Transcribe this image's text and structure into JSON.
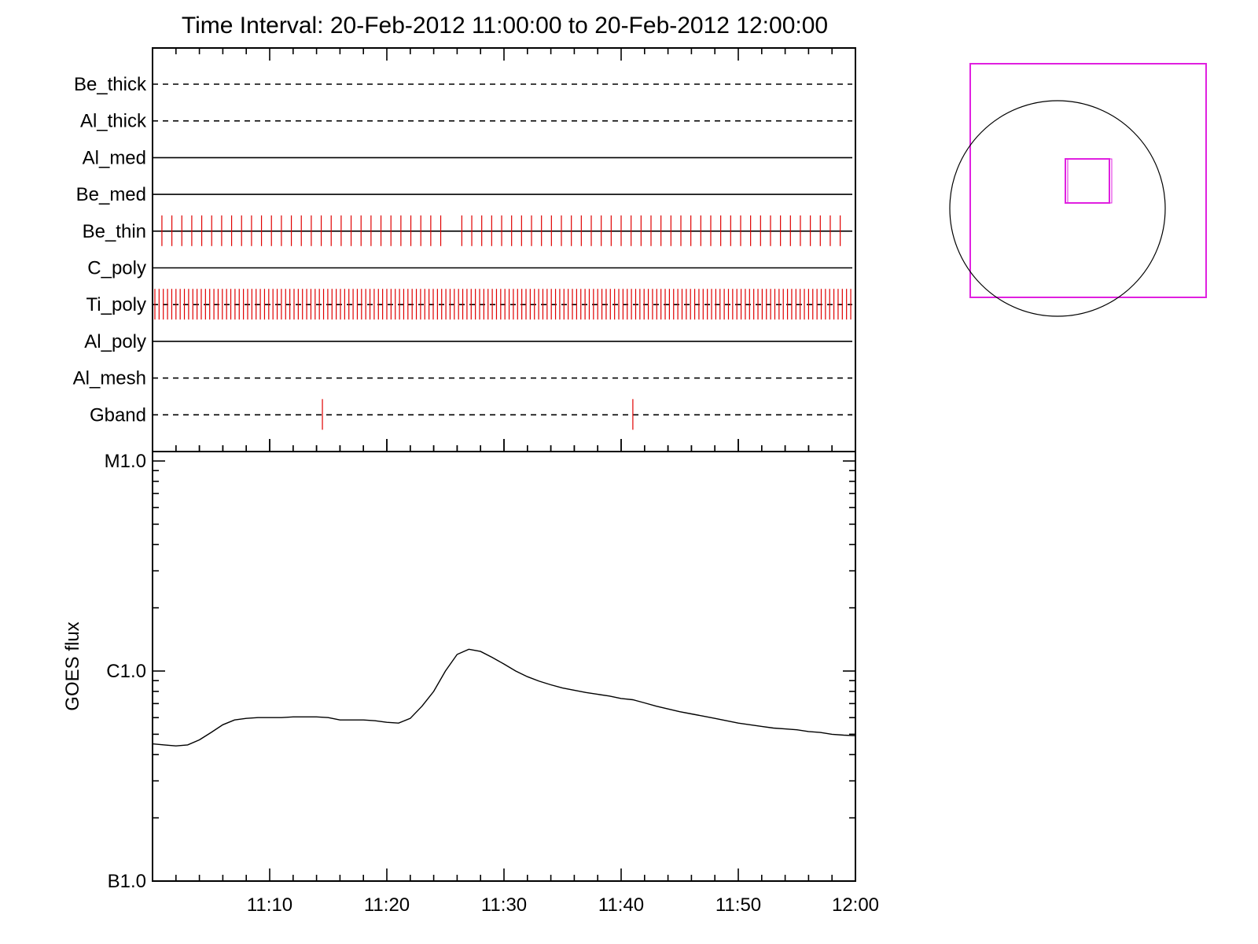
{
  "title": "Time Interval: 20-Feb-2012 11:00:00 to 20-Feb-2012 12:00:00",
  "colors": {
    "axes": "#000000",
    "exposure_marks": "#e00000",
    "fov_box": "#e020e0",
    "sun_limb": "#000000",
    "goes_line": "#000000"
  },
  "chart_data": [
    {
      "type": "timeline",
      "name": "filter exposures",
      "x_range": [
        "11:00",
        "12:00"
      ],
      "grid": false,
      "filters": [
        {
          "label": "Be_thick",
          "line": "dashed",
          "exposures": []
        },
        {
          "label": "Al_thick",
          "line": "dashed",
          "exposures": []
        },
        {
          "label": "Al_med",
          "line": "solid",
          "exposures": []
        },
        {
          "label": "Be_med",
          "line": "solid",
          "exposures": []
        },
        {
          "label": "Be_thin",
          "line": "solid",
          "exposure_cadence_min": 0.85,
          "exposure_periods": [
            [
              "11:00:48",
              "11:25:00"
            ],
            [
              "11:26:24",
              "11:59:30"
            ]
          ]
        },
        {
          "label": "C_poly",
          "line": "solid",
          "exposures": []
        },
        {
          "label": "Ti_poly",
          "line": "dashed",
          "exposure_cadence_min": 0.36,
          "exposure_periods": [
            [
              "11:00:12",
              "11:59:40"
            ]
          ]
        },
        {
          "label": "Al_poly",
          "line": "solid",
          "exposures": []
        },
        {
          "label": "Al_mesh",
          "line": "dashed",
          "exposures": []
        },
        {
          "label": "Gband",
          "line": "dashed",
          "exposures": [
            "11:14:30",
            "11:41:00"
          ]
        }
      ]
    },
    {
      "type": "line",
      "ylabel": "GOES flux",
      "y_scale": "log",
      "ylim": [
        1e-07,
        1e-05
      ],
      "y_ticks": [
        {
          "label": "B1.0",
          "value": 1e-07
        },
        {
          "label": "C1.0",
          "value": 1e-06
        },
        {
          "label": "M1.0",
          "value": 1e-05
        }
      ],
      "x_ticks": [
        "11:10",
        "11:20",
        "11:30",
        "11:40",
        "11:50",
        "12:00"
      ],
      "x_range": [
        "11:00",
        "12:00"
      ],
      "series": [
        {
          "points": [
            [
              "11:00",
              4.5e-07
            ],
            [
              "11:01",
              4.45e-07
            ],
            [
              "11:02",
              4.4e-07
            ],
            [
              "11:03",
              4.45e-07
            ],
            [
              "11:04",
              4.7e-07
            ],
            [
              "11:05",
              5.1e-07
            ],
            [
              "11:06",
              5.55e-07
            ],
            [
              "11:07",
              5.85e-07
            ],
            [
              "11:08",
              5.95e-07
            ],
            [
              "11:09",
              6e-07
            ],
            [
              "11:10",
              6e-07
            ],
            [
              "11:11",
              6e-07
            ],
            [
              "11:12",
              6.05e-07
            ],
            [
              "11:13",
              6.05e-07
            ],
            [
              "11:14",
              6.05e-07
            ],
            [
              "11:15",
              6e-07
            ],
            [
              "11:16",
              5.85e-07
            ],
            [
              "11:17",
              5.85e-07
            ],
            [
              "11:18",
              5.85e-07
            ],
            [
              "11:19",
              5.8e-07
            ],
            [
              "11:20",
              5.7e-07
            ],
            [
              "11:21",
              5.65e-07
            ],
            [
              "11:22",
              5.95e-07
            ],
            [
              "11:23",
              6.8e-07
            ],
            [
              "11:24",
              8e-07
            ],
            [
              "11:25",
              1e-06
            ],
            [
              "11:26",
              1.2e-06
            ],
            [
              "11:27",
              1.27e-06
            ],
            [
              "11:28",
              1.24e-06
            ],
            [
              "11:29",
              1.16e-06
            ],
            [
              "11:30",
              1.08e-06
            ],
            [
              "11:31",
              1e-06
            ],
            [
              "11:32",
              9.4e-07
            ],
            [
              "11:33",
              8.95e-07
            ],
            [
              "11:34",
              8.6e-07
            ],
            [
              "11:35",
              8.3e-07
            ],
            [
              "11:36",
              8.1e-07
            ],
            [
              "11:37",
              7.9e-07
            ],
            [
              "11:38",
              7.75e-07
            ],
            [
              "11:39",
              7.6e-07
            ],
            [
              "11:40",
              7.4e-07
            ],
            [
              "11:41",
              7.3e-07
            ],
            [
              "11:42",
              7.05e-07
            ],
            [
              "11:43",
              6.8e-07
            ],
            [
              "11:44",
              6.6e-07
            ],
            [
              "11:45",
              6.4e-07
            ],
            [
              "11:46",
              6.25e-07
            ],
            [
              "11:47",
              6.1e-07
            ],
            [
              "11:48",
              5.95e-07
            ],
            [
              "11:49",
              5.8e-07
            ],
            [
              "11:50",
              5.65e-07
            ],
            [
              "11:51",
              5.55e-07
            ],
            [
              "11:52",
              5.45e-07
            ],
            [
              "11:53",
              5.35e-07
            ],
            [
              "11:54",
              5.3e-07
            ],
            [
              "11:55",
              5.25e-07
            ],
            [
              "11:56",
              5.15e-07
            ],
            [
              "11:57",
              5.1e-07
            ],
            [
              "11:58",
              5e-07
            ],
            [
              "11:59",
              4.95e-07
            ],
            [
              "12:00",
              4.92e-07
            ]
          ]
        }
      ]
    },
    {
      "type": "diagram",
      "name": "field of view",
      "shapes": [
        "large-fov-box",
        "solar-limb-circle",
        "small-fov-box"
      ]
    }
  ]
}
